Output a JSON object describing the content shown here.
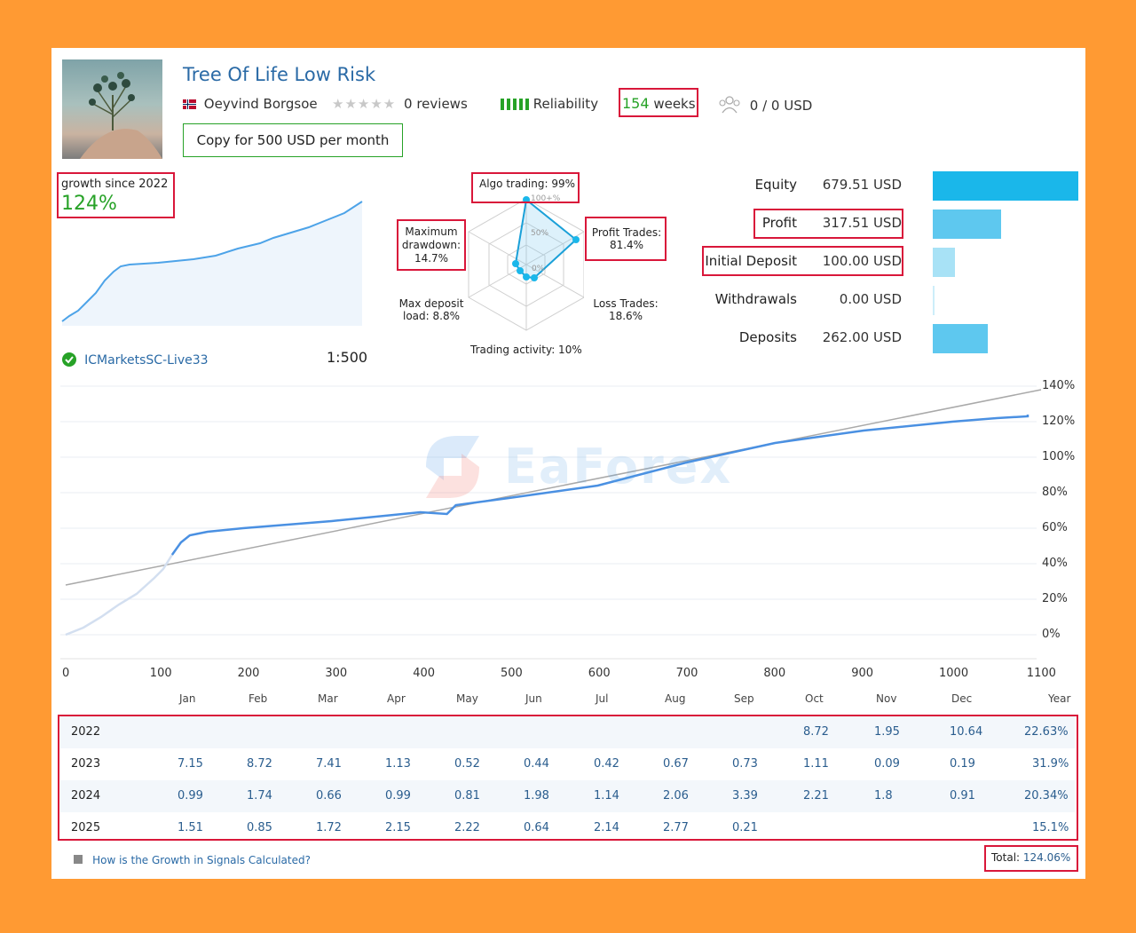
{
  "profile": {
    "title": "Tree Of Life Low Risk",
    "author": "Oeyvind Borgsoe",
    "reviews": "0 reviews",
    "reliability_label": "Reliability",
    "weeks_number": "154",
    "weeks_label": "weeks",
    "subscribers": "0 / 0 USD",
    "copy_button": "Copy for 500 USD per month"
  },
  "growth": {
    "label": "growth since 2022",
    "value": "124%",
    "broker": "ICMarketsSC-Live33",
    "leverage": "1:500"
  },
  "radar": {
    "algo": "Algo trading: 99%",
    "profit_l1": "Profit Trades:",
    "profit_l2": "81.4%",
    "loss_l1": "Loss Trades:",
    "loss_l2": "18.6%",
    "activity": "Trading activity: 10%",
    "deposit_l1": "Max deposit",
    "deposit_l2": "load: 8.8%",
    "drawdown_l1": "Maximum",
    "drawdown_l2": "drawdown:",
    "drawdown_l3": "14.7%",
    "ring_100": "100+%",
    "ring_50": "50%",
    "ring_0": "0%"
  },
  "stats": [
    {
      "label": "Equity",
      "value": "679.51 USD",
      "bar_ratio": 1.0,
      "color": "#1ab7ea"
    },
    {
      "label": "Profit",
      "value": "317.51 USD",
      "bar_ratio": 0.47,
      "color": "#5ec8ef"
    },
    {
      "label": "Initial Deposit",
      "value": "100.00 USD",
      "bar_ratio": 0.15,
      "color": "#a8e2f6"
    },
    {
      "label": "Withdrawals",
      "value": "0.00 USD",
      "bar_ratio": 0.01,
      "color": "#cdeefa"
    },
    {
      "label": "Deposits",
      "value": "262.00 USD",
      "bar_ratio": 0.38,
      "color": "#5ec8ef"
    }
  ],
  "chart_data": {
    "type": "line",
    "x_ticks": [
      "0",
      "100",
      "200",
      "300",
      "400",
      "500",
      "600",
      "700",
      "800",
      "900",
      "1000",
      "1100"
    ],
    "y_ticks": [
      "140%",
      "120%",
      "100%",
      "80%",
      "60%",
      "40%",
      "20%",
      "0%"
    ],
    "xlim": [
      0,
      1100
    ],
    "ylim": [
      0,
      140
    ],
    "series": [
      {
        "x": [
          0,
          20,
          40,
          60,
          80,
          100,
          110,
          120,
          130,
          140,
          150,
          160,
          200,
          300,
          400,
          430,
          440,
          500,
          600,
          700,
          800,
          900,
          1000,
          1050,
          1100,
          1150
        ],
        "y": [
          0,
          4,
          10,
          17,
          23,
          32,
          37,
          45,
          52,
          56,
          57,
          58,
          60,
          64,
          69,
          68,
          73,
          77,
          84,
          97,
          108,
          115,
          120,
          122,
          123,
          124
        ]
      }
    ],
    "trend": {
      "x": [
        0,
        1100
      ],
      "y": [
        28,
        138
      ]
    }
  },
  "watermark": "EaForex",
  "months": [
    "Jan",
    "Feb",
    "Mar",
    "Apr",
    "May",
    "Jun",
    "Jul",
    "Aug",
    "Sep",
    "Oct",
    "Nov",
    "Dec",
    "Year"
  ],
  "years": [
    {
      "year": "2022",
      "values": [
        "",
        "",
        "",
        "",
        "",
        "",
        "",
        "",
        "",
        "8.72",
        "1.95",
        "10.64"
      ],
      "total": "22.63%"
    },
    {
      "year": "2023",
      "values": [
        "7.15",
        "8.72",
        "7.41",
        "1.13",
        "0.52",
        "0.44",
        "0.42",
        "0.67",
        "0.73",
        "1.11",
        "0.09",
        "0.19"
      ],
      "total": "31.9%"
    },
    {
      "year": "2024",
      "values": [
        "0.99",
        "1.74",
        "0.66",
        "0.99",
        "0.81",
        "1.98",
        "1.14",
        "2.06",
        "3.39",
        "2.21",
        "1.8",
        "0.91"
      ],
      "total": "20.34%"
    },
    {
      "year": "2025",
      "values": [
        "1.51",
        "0.85",
        "1.72",
        "2.15",
        "2.22",
        "0.64",
        "2.14",
        "2.77",
        "0.21",
        "",
        "",
        ""
      ],
      "total": "15.1%"
    }
  ],
  "footer": {
    "help_link": "How is the Growth in Signals Calculated?",
    "total_label": "Total:",
    "total_value": "124.06%"
  },
  "colors": {
    "brand_blue": "#2a6aa6",
    "growth_green": "#27a227",
    "highlight_red": "#d9173a",
    "line_blue": "#4a90e2"
  }
}
